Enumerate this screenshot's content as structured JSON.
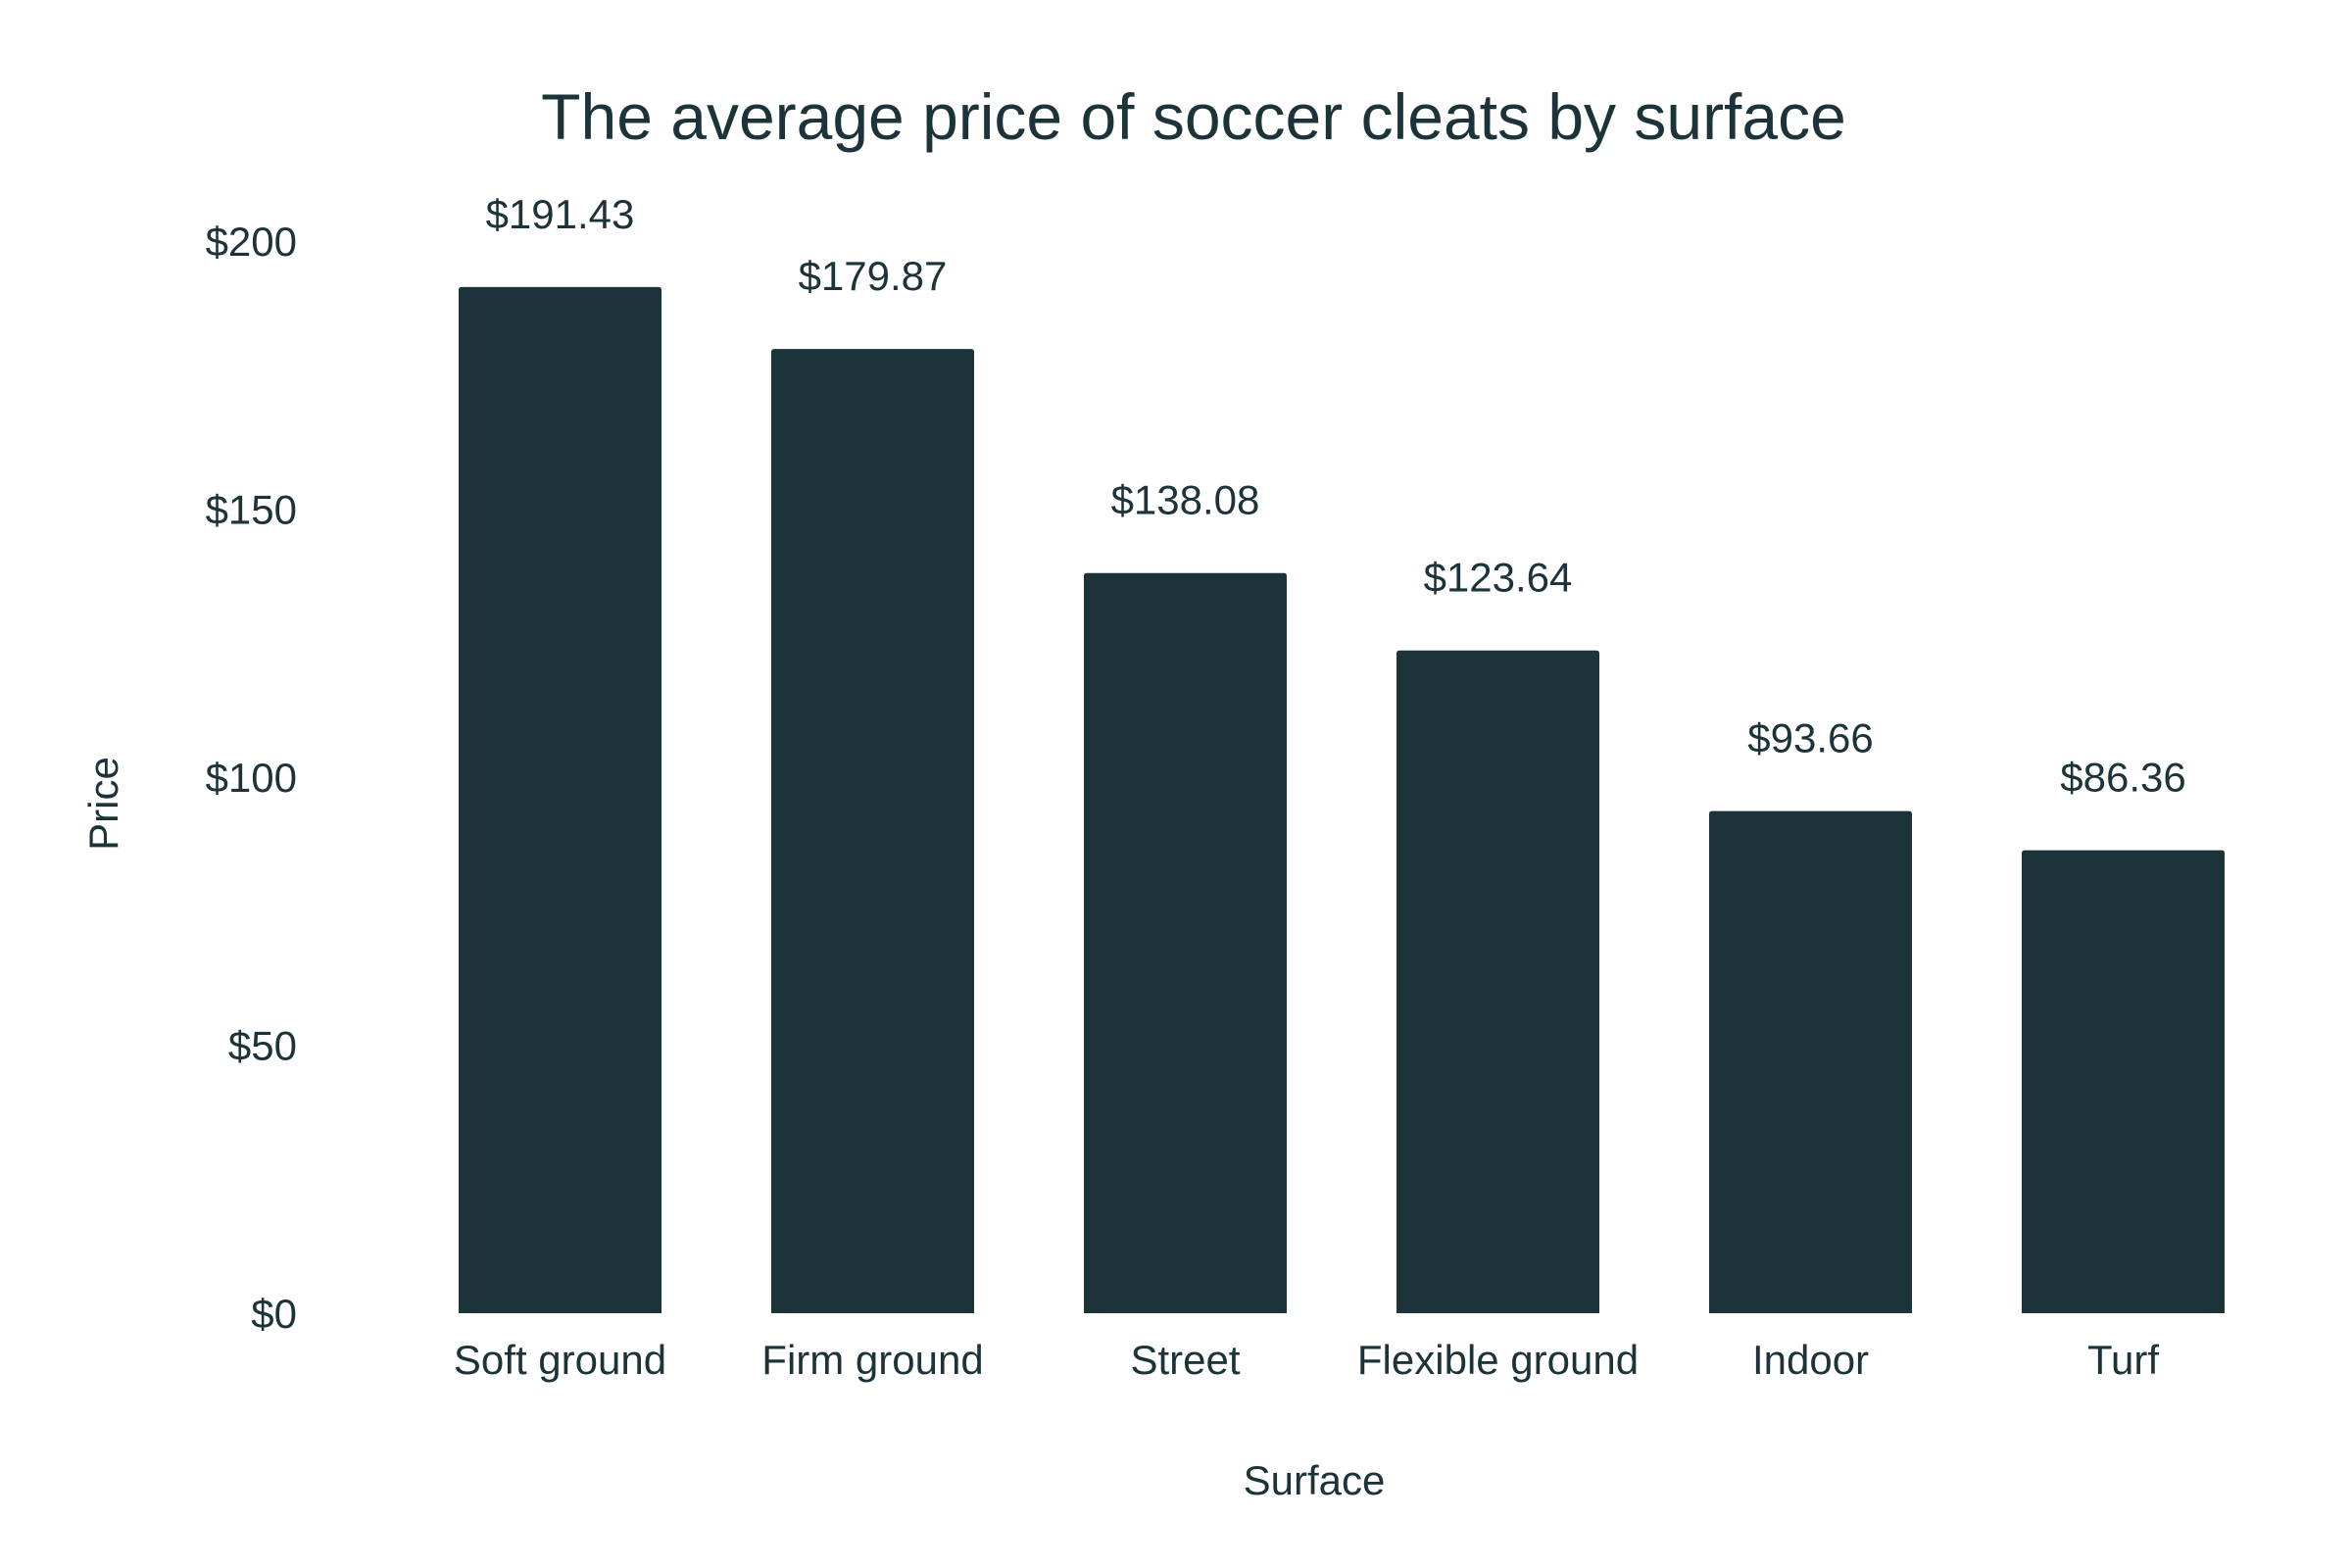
{
  "colors": {
    "bar": "#1c333a",
    "text": "#1c333a",
    "background": "#ffffff"
  },
  "chart_data": {
    "type": "bar",
    "title": "The average price of soccer cleats by surface",
    "xlabel": "Surface",
    "ylabel": "Price",
    "categories": [
      "Soft ground",
      "Firm ground",
      "Street",
      "Flexible ground",
      "Indoor",
      "Turf"
    ],
    "values": [
      191.43,
      179.87,
      138.08,
      123.64,
      93.66,
      86.36
    ],
    "value_labels": [
      "$191.43",
      "$179.87",
      "$138.08",
      "$123.64",
      "$93.66",
      "$86.36"
    ],
    "ylim": [
      0,
      200
    ],
    "yticks": [
      0,
      50,
      100,
      150,
      200
    ],
    "ytick_labels": [
      "$0",
      "$50",
      "$100",
      "$150",
      "$200"
    ],
    "grid": false,
    "legend": "none"
  }
}
